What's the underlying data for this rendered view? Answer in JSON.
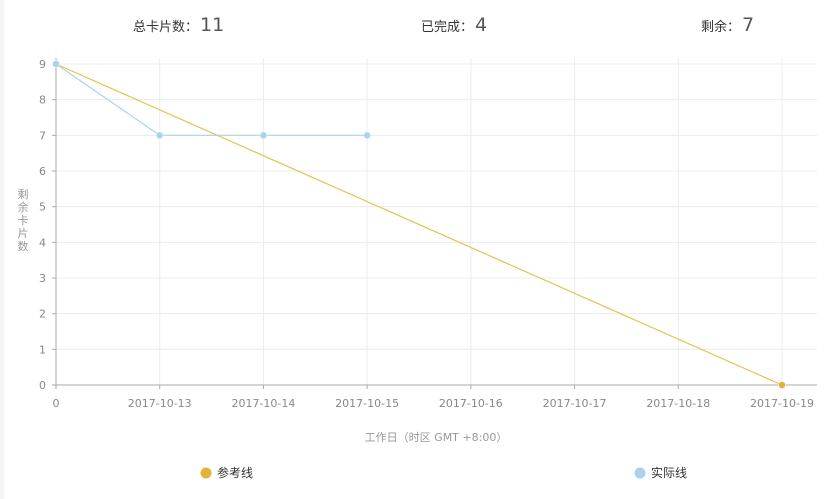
{
  "stats": {
    "total_label": "总卡片数：",
    "total_value": "11",
    "done_label": "已完成：",
    "done_value": "4",
    "remaining_label": "剩余：",
    "remaining_value": "7"
  },
  "chart_data": {
    "type": "line",
    "categories": [
      "0",
      "2017-10-13",
      "2017-10-14",
      "2017-10-15",
      "2017-10-16",
      "2017-10-17",
      "2017-10-18",
      "2017-10-19"
    ],
    "xlabel": "工作日（时区 GMT +8:00）",
    "ylabel": "剩余卡片数",
    "ylim": [
      0,
      9
    ],
    "yticks": [
      0,
      1,
      2,
      3,
      4,
      5,
      6,
      7,
      8,
      9
    ],
    "grid": true,
    "legend_position": "bottom",
    "series": [
      {
        "name": "参考线",
        "color": "#e8c14d",
        "marker_color": "#e3b23c",
        "points": [
          {
            "x": "0",
            "y": 9
          },
          {
            "x": "2017-10-19",
            "y": 0
          }
        ]
      },
      {
        "name": "实际线",
        "color": "#a9d4ec",
        "marker_color": "#a9d4ec",
        "points": [
          {
            "x": "0",
            "y": 9
          },
          {
            "x": "2017-10-13",
            "y": 7
          },
          {
            "x": "2017-10-14",
            "y": 7
          },
          {
            "x": "2017-10-15",
            "y": 7
          }
        ]
      }
    ]
  }
}
